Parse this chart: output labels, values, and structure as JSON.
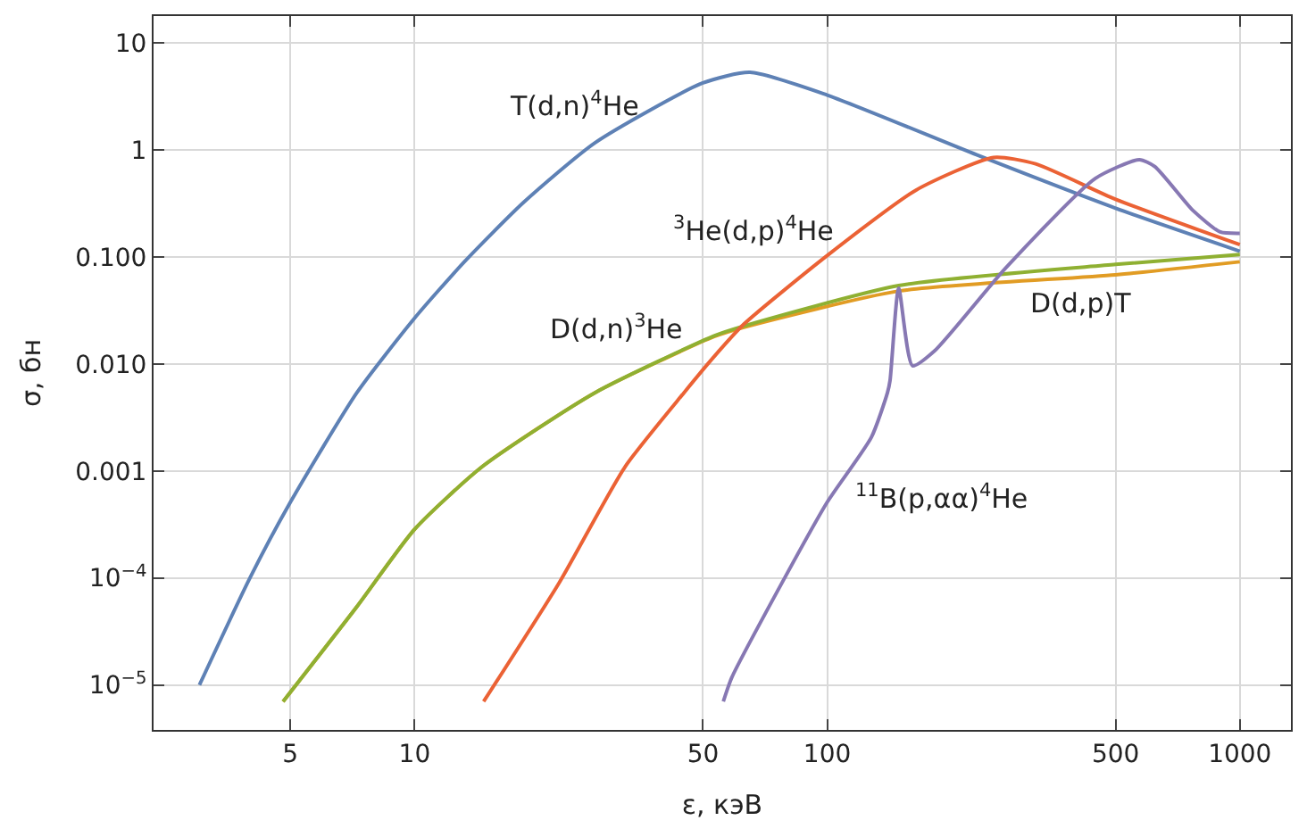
{
  "chart_data": {
    "type": "line",
    "xlabel": "ε, кэВ",
    "ylabel": "σ, бн",
    "log": "xy",
    "grid": true,
    "legend": false,
    "marker": "none",
    "line_style": "solid",
    "xlim": [
      2.33,
      1330
    ],
    "ylim": [
      3.8e-06,
      17.8
    ],
    "xticks": [
      5,
      10,
      50,
      100,
      500,
      1000
    ],
    "yticks": [
      {
        "value": 10,
        "label": "10"
      },
      {
        "value": 1,
        "label": "1"
      },
      {
        "value": 0.1,
        "label": "0.100"
      },
      {
        "value": 0.01,
        "label": "0.010"
      },
      {
        "value": 0.001,
        "label": "0.001"
      },
      {
        "value": 0.0001,
        "label": "10$^{−4}$"
      },
      {
        "value": 1e-05,
        "label": "10$^{−5}$"
      }
    ],
    "series": [
      {
        "name": "T(d,n)$^{4}$He",
        "color": "#5e81b5",
        "x": [
          3.01,
          3.99,
          5,
          7.25,
          10,
          13.2,
          18.4,
          27.4,
          49.8,
          65,
          100,
          230,
          500,
          1000
        ],
        "values": [
          1e-05,
          0.0001,
          0.00051,
          0.0054,
          0.0268,
          0.09,
          0.325,
          1.17,
          4.2,
          5.3,
          3.25,
          0.9,
          0.285,
          0.113
        ]
      },
      {
        "name": "D(d,p)T",
        "color": "#e19c24",
        "x": [
          4.8,
          7.25,
          10,
          14.6,
          27.4,
          53.2,
          62.8,
          149,
          500,
          1000
        ],
        "values": [
          7e-06,
          5.4e-05,
          0.000285,
          0.0011,
          0.0054,
          0.018,
          0.022,
          0.048,
          0.068,
          0.09
        ]
      },
      {
        "name": "D(d,n)$^{3}$He",
        "color": "#8fb032",
        "x": [
          4.8,
          7.25,
          10,
          14.6,
          27.4,
          53.2,
          62.8,
          149,
          500,
          1000
        ],
        "values": [
          7e-06,
          5.4e-05,
          0.000285,
          0.0011,
          0.0054,
          0.0183,
          0.0226,
          0.054,
          0.085,
          0.105
        ]
      },
      {
        "name": "$^{3}$He(d,p)$^{4}$He",
        "color": "#eb6235",
        "x": [
          14.7,
          22.4,
          32.4,
          45,
          53.2,
          62.8,
          100,
          164,
          253,
          320,
          500,
          1000
        ],
        "values": [
          7e-06,
          9e-05,
          0.0011,
          0.0054,
          0.0117,
          0.0235,
          0.103,
          0.42,
          0.85,
          0.74,
          0.345,
          0.13
        ]
      },
      {
        "name": "$^{11}$B(p,αα)$^{4}$He",
        "color": "#8778b3",
        "x": [
          56,
          58.7,
          79.2,
          100,
          128,
          140,
          142,
          149,
          161,
          182,
          271,
          446,
          571,
          622,
          771,
          896,
          1000
        ],
        "values": [
          7e-06,
          1.17e-05,
          0.000103,
          0.00051,
          0.00207,
          0.0054,
          0.007,
          0.051,
          0.0096,
          0.0132,
          0.079,
          0.54,
          0.81,
          0.7,
          0.27,
          0.171,
          0.166
        ]
      }
    ]
  }
}
